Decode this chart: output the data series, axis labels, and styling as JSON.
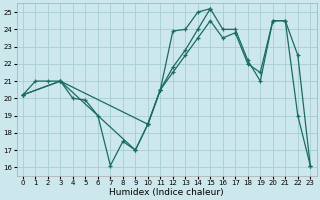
{
  "xlabel": "Humidex (Indice chaleur)",
  "bg_color": "#cde8ed",
  "grid_color": "#a8cdd4",
  "line_color": "#1a6b60",
  "xlim": [
    -0.5,
    23.5
  ],
  "ylim": [
    15.5,
    25.5
  ],
  "xticks": [
    0,
    1,
    2,
    3,
    4,
    5,
    6,
    7,
    8,
    9,
    10,
    11,
    12,
    13,
    14,
    15,
    16,
    17,
    18,
    19,
    20,
    21,
    22,
    23
  ],
  "yticks": [
    16,
    17,
    18,
    19,
    20,
    21,
    22,
    23,
    24,
    25
  ],
  "line1_x": [
    0,
    1,
    2,
    3,
    4,
    5,
    6,
    7,
    8,
    9,
    10,
    11,
    12,
    13,
    14,
    15
  ],
  "line1_y": [
    20.2,
    21.0,
    21.0,
    21.0,
    20.0,
    19.9,
    19.0,
    16.1,
    17.5,
    17.0,
    18.5,
    20.5,
    23.9,
    24.0,
    25.0,
    25.2
  ],
  "line2_x": [
    0,
    3,
    10,
    11,
    12,
    13,
    14,
    15,
    16,
    17,
    18,
    19,
    20,
    21,
    22,
    23
  ],
  "line2_y": [
    20.2,
    21.0,
    18.5,
    20.5,
    21.8,
    22.8,
    24.0,
    25.2,
    24.0,
    24.0,
    22.2,
    21.0,
    24.5,
    24.5,
    22.5,
    16.1
  ],
  "line3_x": [
    0,
    3,
    9,
    10,
    11,
    12,
    13,
    14,
    15,
    16,
    17,
    18,
    19,
    20,
    21,
    22,
    23
  ],
  "line3_y": [
    20.2,
    21.0,
    17.0,
    18.5,
    20.5,
    21.5,
    22.5,
    23.5,
    24.5,
    23.5,
    23.8,
    22.0,
    21.5,
    24.5,
    24.5,
    19.0,
    16.1
  ]
}
